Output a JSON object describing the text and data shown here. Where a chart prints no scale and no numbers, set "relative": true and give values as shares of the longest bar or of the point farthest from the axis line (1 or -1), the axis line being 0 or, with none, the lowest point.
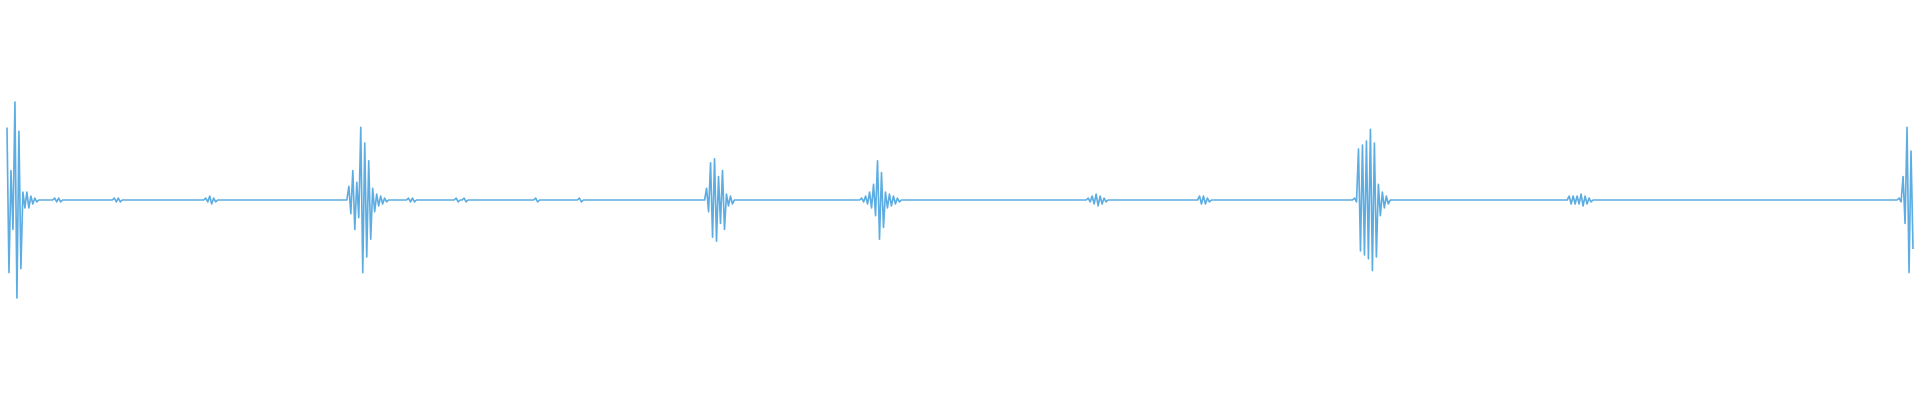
{
  "chart_data": {
    "type": "line",
    "relative": true,
    "color": "#5dade2",
    "categories": [
      null,
      null,
      null,
      null,
      null,
      null,
      null,
      null,
      null,
      null,
      null,
      null,
      null,
      null,
      null,
      null,
      null,
      null,
      null,
      null,
      null,
      null,
      null,
      null,
      null,
      null,
      null,
      null,
      null,
      null,
      null,
      null,
      null,
      null,
      null,
      null,
      null,
      null,
      null,
      null,
      null,
      null,
      null,
      null,
      null,
      null,
      null,
      null,
      null,
      null,
      null,
      null,
      null,
      null,
      null,
      null,
      null,
      null,
      null,
      null,
      null,
      null,
      null,
      null,
      null,
      null,
      null,
      null,
      null,
      null,
      null,
      null,
      null,
      null,
      null,
      null,
      null,
      null,
      null,
      null,
      null,
      null,
      null,
      null,
      null,
      null,
      null,
      null,
      null,
      null,
      null,
      null,
      null,
      null,
      null,
      null,
      null,
      null,
      null,
      null,
      null,
      null,
      null,
      null,
      null,
      null,
      null,
      null,
      null,
      null,
      null,
      null,
      null,
      null,
      null,
      null,
      null,
      null,
      null,
      null,
      null,
      null,
      null,
      null,
      null,
      null,
      null,
      null,
      null,
      null,
      null,
      null,
      null,
      null,
      null,
      null,
      null,
      null,
      null,
      null,
      null,
      null,
      null,
      null,
      null,
      null,
      null,
      null,
      null,
      null,
      null,
      null,
      null,
      null,
      null,
      null,
      null,
      null,
      null,
      null,
      null,
      null,
      null,
      null,
      null,
      null,
      null,
      null,
      null,
      null,
      null,
      null,
      null,
      null,
      null,
      null,
      null,
      null,
      null,
      null,
      null,
      null,
      null,
      null,
      null,
      null,
      null,
      null,
      null,
      null,
      null,
      null,
      null,
      null,
      null,
      null,
      null,
      null,
      null,
      null,
      null,
      null,
      null,
      null,
      null,
      null,
      null,
      null,
      null,
      null,
      null,
      null,
      null,
      null,
      null,
      null,
      null,
      null,
      null,
      null,
      null,
      null,
      null,
      null,
      null,
      null,
      null,
      null,
      null,
      null,
      null,
      null,
      null,
      null,
      null,
      null,
      null,
      null,
      null,
      null,
      null,
      null,
      null,
      null,
      null,
      null,
      null,
      null,
      null,
      null,
      null,
      null,
      null,
      null,
      null,
      null,
      null,
      null,
      null,
      null,
      null,
      null,
      null,
      null,
      null,
      null,
      null,
      null,
      null,
      null,
      null,
      null,
      null,
      null,
      null,
      null,
      null,
      null,
      null,
      null,
      null,
      null,
      null,
      null,
      null,
      null,
      null,
      null,
      null,
      null,
      null,
      null,
      null,
      null,
      null,
      null,
      null,
      null,
      null,
      null,
      null,
      null,
      null,
      null,
      null,
      null,
      null,
      null,
      null,
      null,
      null,
      null,
      null,
      null,
      null,
      null,
      null,
      null,
      null,
      null,
      null,
      null,
      null,
      null,
      null,
      null,
      null,
      null,
      null,
      null,
      null,
      null,
      null,
      null,
      null,
      null,
      null,
      null,
      null,
      null,
      null,
      null,
      null,
      null,
      null,
      null,
      null,
      null,
      null,
      null,
      null,
      null,
      null,
      null,
      null,
      null,
      null,
      null,
      null,
      null,
      null,
      null,
      null,
      null,
      null,
      null,
      null,
      null,
      null,
      null,
      null,
      null,
      null,
      null,
      null,
      null,
      null,
      null,
      null,
      null,
      null,
      null,
      null,
      null,
      null,
      null,
      null,
      null,
      null,
      null,
      null,
      null,
      null,
      null,
      null,
      null,
      null,
      null,
      null,
      null,
      null,
      null,
      null,
      null,
      null,
      null,
      null,
      null,
      null,
      null,
      null,
      null,
      null,
      null,
      null,
      null,
      null,
      null,
      null,
      null,
      null,
      null,
      null,
      null,
      null,
      null,
      null,
      null,
      null,
      null,
      null,
      null,
      null,
      null,
      null,
      null,
      null,
      null,
      null,
      null,
      null,
      null,
      null,
      null,
      null,
      null,
      null,
      null,
      null,
      null,
      null,
      null,
      null,
      null,
      null,
      null,
      null,
      null,
      null,
      null,
      null,
      null,
      null,
      null,
      null,
      null,
      null,
      null,
      null,
      null,
      null,
      null,
      null,
      null,
      null,
      null,
      null,
      null,
      null,
      null,
      null,
      null,
      null,
      null,
      null,
      null,
      null,
      null,
      null,
      null,
      null,
      null,
      null,
      null,
      null,
      null,
      null,
      null,
      null,
      null,
      null,
      null,
      null,
      null,
      null,
      null,
      null,
      null,
      null,
      null,
      null,
      null,
      null,
      null,
      null,
      null,
      null,
      null,
      null,
      null,
      null,
      null,
      null,
      null,
      null,
      null,
      null,
      null,
      null,
      null,
      null,
      null,
      null,
      null,
      null,
      null,
      null,
      null,
      null,
      null,
      null,
      null,
      null,
      null,
      null,
      null,
      null,
      null,
      null,
      null,
      null,
      null,
      null,
      null,
      null,
      null,
      null,
      null,
      null,
      null,
      null,
      null,
      null,
      null,
      null,
      null,
      null,
      null,
      null,
      null,
      null,
      null,
      null,
      null,
      null,
      null,
      null,
      null,
      null,
      null,
      null,
      null,
      null,
      null,
      null,
      null,
      null,
      null,
      null,
      null,
      null,
      null,
      null,
      null,
      null,
      null,
      null,
      null,
      null,
      null,
      null,
      null,
      null,
      null,
      null,
      null,
      null,
      null,
      null,
      null,
      null,
      null,
      null,
      null,
      null,
      null,
      null,
      null,
      null,
      null,
      null,
      null,
      null,
      null,
      null,
      null,
      null,
      null,
      null,
      null,
      null,
      null,
      null,
      null,
      null,
      null,
      null,
      null,
      null,
      null,
      null,
      null,
      null,
      null,
      null,
      null,
      null,
      null,
      null,
      null,
      null,
      null,
      null,
      null,
      null,
      null,
      null,
      null,
      null,
      null,
      null,
      null,
      null,
      null,
      null,
      null,
      null,
      null,
      null,
      null,
      null,
      null,
      null,
      null,
      null,
      null,
      null,
      null,
      null,
      null,
      null,
      null,
      null,
      null,
      null,
      null,
      null,
      null,
      null,
      null,
      null,
      null,
      null,
      null,
      null,
      null,
      null,
      null,
      null,
      null,
      null,
      null,
      null,
      null,
      null,
      null,
      null,
      null,
      null,
      null,
      null,
      null,
      null,
      null,
      null,
      null,
      null,
      null,
      null,
      null,
      null,
      null,
      null,
      null,
      null,
      null,
      null,
      null,
      null,
      null,
      null,
      null,
      null,
      null,
      null,
      null,
      null,
      null,
      null,
      null,
      null,
      null,
      null,
      null,
      null,
      null,
      null,
      null,
      null,
      null,
      null,
      null,
      null,
      null,
      null,
      null,
      null,
      null,
      null,
      null,
      null,
      null,
      null,
      null,
      null,
      null,
      null,
      null,
      null,
      null,
      null,
      null,
      null,
      null,
      null,
      null,
      null,
      null,
      null,
      null,
      null,
      null,
      null,
      null,
      null,
      null,
      null,
      null,
      null,
      null,
      null,
      null,
      null,
      null,
      null,
      null,
      null,
      null,
      null,
      null,
      null,
      null,
      null,
      null,
      null,
      null,
      null,
      null,
      null,
      null,
      null,
      null,
      null,
      null,
      null,
      null,
      null,
      null,
      null,
      null,
      null,
      null,
      null,
      null,
      null,
      null,
      null,
      null,
      null,
      null,
      null,
      null,
      null,
      null,
      null,
      null,
      null,
      null,
      null,
      null,
      null,
      null,
      null,
      null,
      null,
      null,
      null,
      null,
      null,
      null,
      null,
      null,
      null,
      null,
      null,
      null,
      null,
      null,
      null,
      null,
      null,
      null,
      null,
      null,
      null,
      null,
      null,
      null,
      null,
      null,
      null,
      null,
      null,
      null,
      null,
      null,
      null,
      null,
      null,
      null,
      null,
      null,
      null,
      null,
      null,
      null,
      null,
      null,
      null,
      null,
      null,
      null,
      null,
      null,
      null,
      null,
      null,
      null,
      null,
      null,
      null,
      null,
      null,
      null,
      null,
      null,
      null,
      null,
      null,
      null,
      null,
      null,
      null,
      null,
      null,
      null,
      null,
      null,
      null,
      null,
      null,
      null,
      null,
      null,
      null,
      null,
      null,
      null,
      null,
      null,
      null,
      null,
      null,
      null,
      null,
      null,
      null,
      null,
      null,
      null,
      null,
      null,
      null,
      null,
      null,
      null,
      null,
      null,
      null,
      null,
      null,
      null,
      null,
      null,
      null,
      null,
      null,
      null,
      null,
      null
    ],
    "values": [
      0.87,
      0.13,
      0.65,
      0.35,
      1,
      0,
      0.85,
      0.15,
      0.54,
      0.46,
      0.54,
      0.46,
      0.52,
      0.48,
      0.51,
      0.49,
      0.5,
      0.5,
      0.5,
      0.5,
      0.5,
      0.5,
      0.5,
      0.5,
      0.51,
      0.49,
      0.51,
      0.49,
      0.5,
      0.5,
      0.5,
      0.5,
      0.5,
      0.5,
      0.5,
      0.5,
      0.5,
      0.5,
      0.5,
      0.5,
      0.5,
      0.5,
      0.5,
      0.5,
      0.5,
      0.5,
      0.5,
      0.5,
      0.5,
      0.5,
      0.5,
      0.5,
      0.5,
      0.5,
      0.51,
      0.49,
      0.51,
      0.49,
      0.5,
      0.5,
      0.5,
      0.5,
      0.5,
      0.5,
      0.5,
      0.5,
      0.5,
      0.5,
      0.5,
      0.5,
      0.5,
      0.5,
      0.5,
      0.5,
      0.5,
      0.5,
      0.5,
      0.5,
      0.5,
      0.5,
      0.5,
      0.5,
      0.5,
      0.5,
      0.5,
      0.5,
      0.5,
      0.5,
      0.5,
      0.5,
      0.5,
      0.5,
      0.5,
      0.5,
      0.5,
      0.5,
      0.5,
      0.5,
      0.5,
      0.5,
      0.51,
      0.49,
      0.52,
      0.48,
      0.51,
      0.49,
      0.5,
      0.5,
      0.5,
      0.5,
      0.5,
      0.5,
      0.5,
      0.5,
      0.5,
      0.5,
      0.5,
      0.5,
      0.5,
      0.5,
      0.5,
      0.5,
      0.5,
      0.5,
      0.5,
      0.5,
      0.5,
      0.5,
      0.5,
      0.5,
      0.5,
      0.5,
      0.5,
      0.5,
      0.5,
      0.5,
      0.5,
      0.5,
      0.5,
      0.5,
      0.5,
      0.5,
      0.5,
      0.5,
      0.5,
      0.5,
      0.5,
      0.5,
      0.5,
      0.5,
      0.5,
      0.5,
      0.5,
      0.5,
      0.5,
      0.5,
      0.5,
      0.5,
      0.5,
      0.5,
      0.5,
      0.5,
      0.5,
      0.5,
      0.5,
      0.5,
      0.5,
      0.5,
      0.5,
      0.5,
      0.5,
      0.5,
      0.57,
      0.43,
      0.65,
      0.35,
      0.59,
      0.41,
      0.87,
      0.13,
      0.79,
      0.21,
      0.7,
      0.3,
      0.56,
      0.44,
      0.53,
      0.47,
      0.52,
      0.48,
      0.51,
      0.49,
      0.5,
      0.5,
      0.5,
      0.5,
      0.5,
      0.5,
      0.5,
      0.5,
      0.5,
      0.5,
      0.51,
      0.49,
      0.51,
      0.49,
      0.5,
      0.5,
      0.5,
      0.5,
      0.5,
      0.5,
      0.5,
      0.5,
      0.5,
      0.5,
      0.5,
      0.5,
      0.5,
      0.5,
      0.5,
      0.5,
      0.5,
      0.5,
      0.5,
      0.5,
      0.51,
      0.49,
      0.5,
      0.5,
      0.51,
      0.49,
      0.5,
      0.5,
      0.5,
      0.5,
      0.5,
      0.5,
      0.5,
      0.5,
      0.5,
      0.5,
      0.5,
      0.5,
      0.5,
      0.5,
      0.5,
      0.5,
      0.5,
      0.5,
      0.5,
      0.5,
      0.5,
      0.5,
      0.5,
      0.5,
      0.5,
      0.5,
      0.5,
      0.5,
      0.5,
      0.5,
      0.5,
      0.5,
      0.5,
      0.5,
      0.51,
      0.49,
      0.5,
      0.5,
      0.5,
      0.5,
      0.5,
      0.5,
      0.5,
      0.5,
      0.5,
      0.5,
      0.5,
      0.5,
      0.5,
      0.5,
      0.5,
      0.5,
      0.5,
      0.5,
      0.5,
      0.5,
      0.51,
      0.49,
      0.5,
      0.5,
      0.5,
      0.5,
      0.5,
      0.5,
      0.5,
      0.5,
      0.5,
      0.5,
      0.5,
      0.5,
      0.5,
      0.5,
      0.5,
      0.5,
      0.5,
      0.5,
      0.5,
      0.5,
      0.5,
      0.5,
      0.5,
      0.5,
      0.5,
      0.5,
      0.5,
      0.5,
      0.5,
      0.5,
      0.5,
      0.5,
      0.5,
      0.5,
      0.5,
      0.5,
      0.5,
      0.5,
      0.5,
      0.5,
      0.5,
      0.5,
      0.5,
      0.5,
      0.5,
      0.5,
      0.5,
      0.5,
      0.5,
      0.5,
      0.5,
      0.5,
      0.5,
      0.5,
      0.5,
      0.5,
      0.5,
      0.5,
      0.5,
      0.5,
      0.5,
      0.5,
      0.56,
      0.44,
      0.69,
      0.31,
      0.71,
      0.29,
      0.62,
      0.38,
      0.65,
      0.35,
      0.53,
      0.47,
      0.52,
      0.48,
      0.5,
      0.5,
      0.5,
      0.5,
      0.5,
      0.5,
      0.5,
      0.5,
      0.5,
      0.5,
      0.5,
      0.5,
      0.5,
      0.5,
      0.5,
      0.5,
      0.5,
      0.5,
      0.5,
      0.5,
      0.5,
      0.5,
      0.5,
      0.5,
      0.5,
      0.5,
      0.5,
      0.5,
      0.5,
      0.5,
      0.5,
      0.5,
      0.5,
      0.5,
      0.5,
      0.5,
      0.5,
      0.5,
      0.5,
      0.5,
      0.5,
      0.5,
      0.5,
      0.5,
      0.5,
      0.5,
      0.5,
      0.5,
      0.5,
      0.5,
      0.5,
      0.5,
      0.5,
      0.5,
      0.5,
      0.5,
      0.5,
      0.5,
      0.5,
      0.5,
      0.5,
      0.5,
      0.5,
      0.5,
      0.51,
      0.49,
      0.52,
      0.48,
      0.54,
      0.46,
      0.58,
      0.42,
      0.7,
      0.3,
      0.64,
      0.36,
      0.54,
      0.46,
      0.53,
      0.47,
      0.52,
      0.48,
      0.51,
      0.49,
      0.5,
      0.5,
      0.5,
      0.5,
      0.5,
      0.5,
      0.5,
      0.5,
      0.5,
      0.5,
      0.5,
      0.5,
      0.5,
      0.5,
      0.5,
      0.5,
      0.5,
      0.5,
      0.5,
      0.5,
      0.5,
      0.5,
      0.5,
      0.5,
      0.5,
      0.5,
      0.5,
      0.5,
      0.5,
      0.5,
      0.5,
      0.5,
      0.5,
      0.5,
      0.5,
      0.5,
      0.5,
      0.5,
      0.5,
      0.5,
      0.5,
      0.5,
      0.5,
      0.5,
      0.5,
      0.5,
      0.5,
      0.5,
      0.5,
      0.5,
      0.5,
      0.5,
      0.5,
      0.5,
      0.5,
      0.5,
      0.5,
      0.5,
      0.5,
      0.5,
      0.5,
      0.5,
      0.5,
      0.5,
      0.5,
      0.5,
      0.5,
      0.5,
      0.5,
      0.5,
      0.5,
      0.5,
      0.5,
      0.5,
      0.5,
      0.5,
      0.5,
      0.5,
      0.5,
      0.5,
      0.5,
      0.5,
      0.5,
      0.5,
      0.5,
      0.5,
      0.5,
      0.5,
      0.5,
      0.5,
      0.5,
      0.5,
      0.5,
      0.5,
      0.51,
      0.49,
      0.52,
      0.48,
      0.53,
      0.47,
      0.52,
      0.48,
      0.51,
      0.49,
      0.5,
      0.5,
      0.5,
      0.5,
      0.5,
      0.5,
      0.5,
      0.5,
      0.5,
      0.5,
      0.5,
      0.5,
      0.5,
      0.5,
      0.5,
      0.5,
      0.5,
      0.5,
      0.5,
      0.5,
      0.5,
      0.5,
      0.5,
      0.5,
      0.5,
      0.5,
      0.5,
      0.5,
      0.5,
      0.5,
      0.5,
      0.5,
      0.5,
      0.5,
      0.5,
      0.5,
      0.5,
      0.5,
      0.5,
      0.5,
      0.5,
      0.5,
      0.5,
      0.5,
      0.5,
      0.5,
      0.52,
      0.48,
      0.52,
      0.48,
      0.51,
      0.49,
      0.5,
      0.5,
      0.5,
      0.5,
      0.5,
      0.5,
      0.5,
      0.5,
      0.5,
      0.5,
      0.5,
      0.5,
      0.5,
      0.5,
      0.5,
      0.5,
      0.5,
      0.5,
      0.5,
      0.5,
      0.5,
      0.5,
      0.5,
      0.5,
      0.5,
      0.5,
      0.5,
      0.5,
      0.5,
      0.5,
      0.5,
      0.5,
      0.5,
      0.5,
      0.5,
      0.5,
      0.5,
      0.5,
      0.5,
      0.5,
      0.5,
      0.5,
      0.5,
      0.5,
      0.5,
      0.5,
      0.5,
      0.5,
      0.5,
      0.5,
      0.5,
      0.5,
      0.5,
      0.5,
      0.5,
      0.5,
      0.5,
      0.5,
      0.5,
      0.5,
      0.5,
      0.5,
      0.5,
      0.5,
      0.5,
      0.5,
      0.5,
      0.5,
      0.5,
      0.5,
      0.5,
      0.5,
      0.51,
      0.49,
      0.76,
      0.24,
      0.78,
      0.22,
      0.8,
      0.2,
      0.86,
      0.14,
      0.79,
      0.21,
      0.58,
      0.42,
      0.54,
      0.46,
      0.52,
      0.48,
      0.5,
      0.5,
      0.5,
      0.5,
      0.5,
      0.5,
      0.5,
      0.5,
      0.5,
      0.5,
      0.5,
      0.5,
      0.5,
      0.5,
      0.5,
      0.5,
      0.5,
      0.5,
      0.5,
      0.5,
      0.5,
      0.5,
      0.5,
      0.5,
      0.5,
      0.5,
      0.5,
      0.5,
      0.5,
      0.5,
      0.5,
      0.5,
      0.5,
      0.5,
      0.5,
      0.5,
      0.5,
      0.5,
      0.5,
      0.5,
      0.5,
      0.5,
      0.5,
      0.5,
      0.5,
      0.5,
      0.5,
      0.5,
      0.5,
      0.5,
      0.5,
      0.5,
      0.5,
      0.5,
      0.5,
      0.5,
      0.5,
      0.5,
      0.5,
      0.5,
      0.5,
      0.5,
      0.5,
      0.5,
      0.5,
      0.5,
      0.5,
      0.5,
      0.5,
      0.5,
      0.5,
      0.5,
      0.5,
      0.5,
      0.5,
      0.5,
      0.5,
      0.5,
      0.5,
      0.5,
      0.5,
      0.5,
      0.5,
      0.5,
      0.5,
      0.5,
      0.5,
      0.5,
      0.5,
      0.5,
      0.52,
      0.48,
      0.52,
      0.48,
      0.52,
      0.48,
      0.53,
      0.47,
      0.52,
      0.48,
      0.51,
      0.49,
      0.5,
      0.5,
      0.5,
      0.5,
      0.5,
      0.5,
      0.5,
      0.5,
      0.5,
      0.5,
      0.5,
      0.5,
      0.5,
      0.5,
      0.5,
      0.5,
      0.5,
      0.5,
      0.5,
      0.5,
      0.5,
      0.5,
      0.5,
      0.5,
      0.5,
      0.5,
      0.5,
      0.5,
      0.5,
      0.5,
      0.5,
      0.5,
      0.5,
      0.5,
      0.5,
      0.5,
      0.5,
      0.5,
      0.5,
      0.5,
      0.5,
      0.5,
      0.5,
      0.5,
      0.5,
      0.5,
      0.5,
      0.5,
      0.5,
      0.5,
      0.5,
      0.5,
      0.5,
      0.5,
      0.5,
      0.5,
      0.5,
      0.5,
      0.5,
      0.5,
      0.5,
      0.5,
      0.5,
      0.5,
      0.5,
      0.5,
      0.5,
      0.5,
      0.5,
      0.5,
      0.5,
      0.5,
      0.5,
      0.5,
      0.5,
      0.5,
      0.5,
      0.5,
      0.5,
      0.5,
      0.5,
      0.5,
      0.5,
      0.5,
      0.5,
      0.5,
      0.5,
      0.5,
      0.5,
      0.5,
      0.5,
      0.5,
      0.5,
      0.5,
      0.5,
      0.5,
      0.5,
      0.5,
      0.5,
      0.5,
      0.5,
      0.5,
      0.5,
      0.5,
      0.5,
      0.5,
      0.5,
      0.5,
      0.5,
      0.5,
      0.5,
      0.5,
      0.5,
      0.5,
      0.5,
      0.5,
      0.5,
      0.5,
      0.5,
      0.5,
      0.5,
      0.5,
      0.5,
      0.5,
      0.5,
      0.5,
      0.5,
      0.5,
      0.5,
      0.5,
      0.5,
      0.5,
      0.5,
      0.5,
      0.5,
      0.5,
      0.5,
      0.5,
      0.5,
      0.5,
      0.5,
      0.5,
      0.5,
      0.5,
      0.5,
      0.5,
      0.5,
      0.5,
      0.5,
      0.5,
      0.5,
      0.5,
      0.5,
      0.5,
      0.51,
      0.49,
      0.62,
      0.38,
      0.87,
      0.13,
      0.75,
      0.25
    ]
  }
}
